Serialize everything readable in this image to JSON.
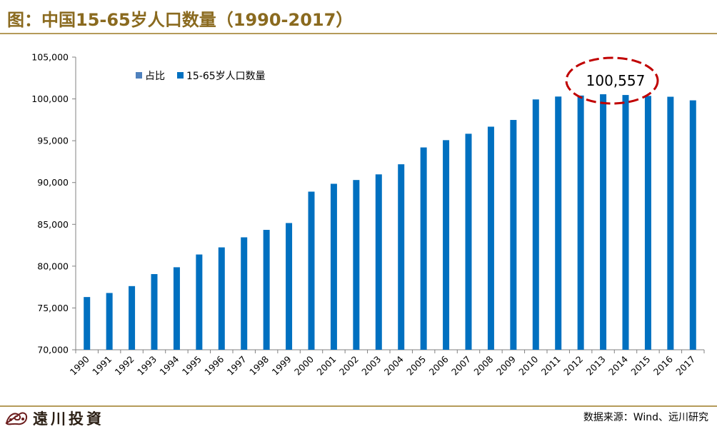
{
  "header": {
    "title": "图：中国15-65岁人口数量（1990-2017）"
  },
  "footer": {
    "logo_text": "遠川投資",
    "source": "数据来源：Wind、远川研究"
  },
  "colors": {
    "bar": "#0070c0",
    "legend_share": "#4f81bd",
    "accent_gold": "#8a6a1f",
    "callout_ring": "#c00000"
  },
  "chart_data": {
    "type": "bar",
    "title": "中国15-65岁人口数量（1990-2017）",
    "xlabel": "",
    "ylabel": "",
    "ylim": [
      70000,
      105000
    ],
    "yticks": [
      70000,
      75000,
      80000,
      85000,
      90000,
      95000,
      100000,
      105000
    ],
    "ytick_labels": [
      "70,000",
      "75,000",
      "80,000",
      "85,000",
      "90,000",
      "95,000",
      "100,000",
      "105,000"
    ],
    "grid": false,
    "legend_position": "top-left",
    "legend": [
      "占比",
      "15-65岁人口数量"
    ],
    "categories": [
      "1990",
      "1991",
      "1992",
      "1993",
      "1994",
      "1995",
      "1996",
      "1997",
      "1998",
      "1999",
      "2000",
      "2001",
      "2002",
      "2003",
      "2004",
      "2005",
      "2006",
      "2007",
      "2008",
      "2009",
      "2010",
      "2011",
      "2012",
      "2013",
      "2014",
      "2015",
      "2016",
      "2017"
    ],
    "series": [
      {
        "name": "15-65岁人口数量",
        "values": [
          76306,
          76791,
          77614,
          79051,
          79868,
          81393,
          82245,
          83448,
          84338,
          85157,
          88910,
          89849,
          90302,
          90976,
          92184,
          94197,
          95068,
          95833,
          96680,
          97484,
          99938,
          100283,
          100403,
          100557,
          100469,
          100361,
          100260,
          99829
        ]
      }
    ],
    "annotation": {
      "category": "2013",
      "label": "100,557"
    }
  }
}
